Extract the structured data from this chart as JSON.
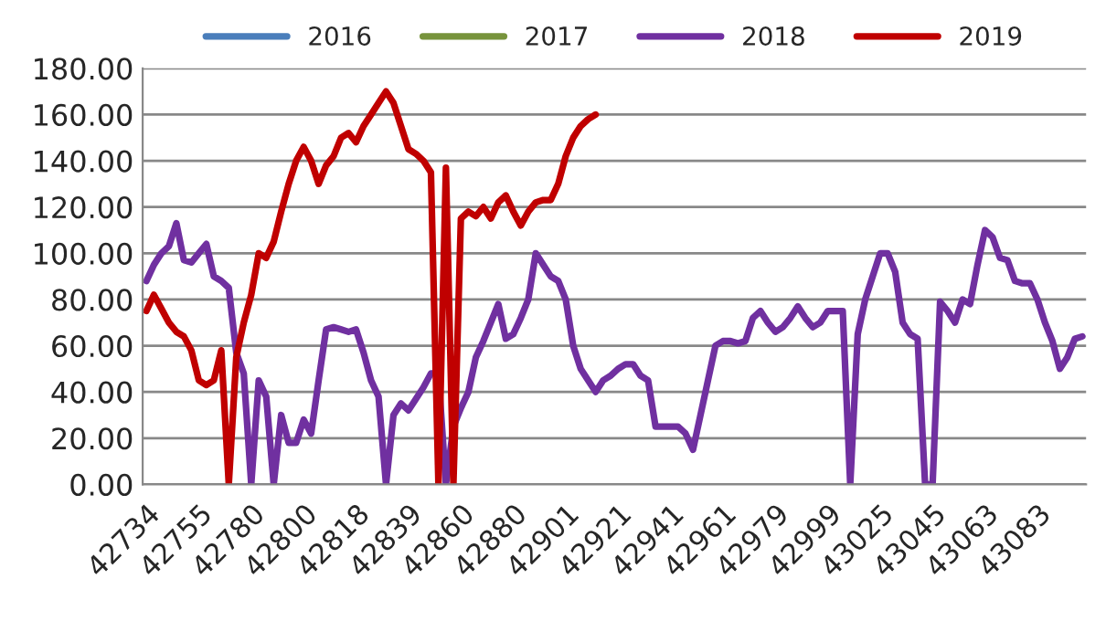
{
  "chart_data": {
    "type": "line",
    "categories": [
      "42734",
      null,
      null,
      null,
      null,
      null,
      null,
      "42755",
      null,
      null,
      null,
      null,
      null,
      null,
      "42780",
      null,
      null,
      null,
      null,
      null,
      null,
      "42800",
      null,
      null,
      null,
      null,
      null,
      null,
      "42818",
      null,
      null,
      null,
      null,
      null,
      null,
      "42839",
      null,
      null,
      null,
      null,
      null,
      null,
      "42860",
      null,
      null,
      null,
      null,
      null,
      null,
      "42880",
      null,
      null,
      null,
      null,
      null,
      null,
      "42901",
      null,
      null,
      null,
      null,
      null,
      null,
      "42921",
      null,
      null,
      null,
      null,
      null,
      null,
      "42941",
      null,
      null,
      null,
      null,
      null,
      null,
      "42961",
      null,
      null,
      null,
      null,
      null,
      null,
      "42979",
      null,
      null,
      null,
      null,
      null,
      null,
      "42999",
      null,
      null,
      null,
      null,
      null,
      null,
      "43025",
      null,
      null,
      null,
      null,
      null,
      null,
      "43045",
      null,
      null,
      null,
      null,
      null,
      null,
      "43063",
      null,
      null,
      null,
      null,
      null,
      null,
      "43083",
      null,
      null,
      null,
      null,
      null,
      null
    ],
    "series": [
      {
        "name": "2016",
        "color": "#4a7ebb",
        "values": [
          null,
          null,
          null,
          null,
          null,
          null,
          null,
          null,
          null,
          null,
          null,
          null,
          null,
          null,
          null,
          null,
          null,
          null,
          null,
          null,
          null,
          null,
          null,
          null,
          null,
          null,
          null,
          null,
          null,
          null,
          null,
          null,
          null,
          null,
          null,
          null,
          null,
          null,
          null,
          null,
          null,
          null,
          null,
          null,
          null,
          null,
          null,
          null,
          null,
          null,
          null,
          null,
          null,
          null,
          null,
          null,
          null,
          null,
          null,
          null,
          null,
          null,
          null,
          null,
          null,
          null,
          null,
          null,
          null,
          null,
          null,
          null,
          null,
          null,
          null,
          null,
          null,
          null,
          null,
          null,
          null,
          null,
          null,
          null,
          null,
          null,
          null,
          null,
          null,
          null,
          null,
          null,
          null,
          null,
          null,
          null,
          null,
          null,
          null,
          null,
          null,
          null,
          null,
          null,
          null,
          null,
          null,
          null,
          null,
          null,
          null,
          null,
          null,
          null,
          null,
          null,
          null,
          null,
          null,
          null,
          null,
          null,
          null,
          null,
          null,
          null
        ]
      },
      {
        "name": "2017",
        "color": "#77933c",
        "values": [
          null,
          null,
          null,
          null,
          null,
          null,
          null,
          null,
          null,
          null,
          null,
          null,
          null,
          null,
          null,
          null,
          null,
          null,
          null,
          null,
          null,
          null,
          null,
          null,
          null,
          null,
          null,
          null,
          null,
          null,
          null,
          null,
          null,
          null,
          null,
          null,
          null,
          null,
          null,
          null,
          null,
          null,
          null,
          null,
          null,
          null,
          null,
          null,
          null,
          null,
          null,
          null,
          null,
          null,
          null,
          null,
          null,
          null,
          null,
          null,
          null,
          null,
          null,
          null,
          null,
          null,
          null,
          null,
          null,
          null,
          null,
          null,
          null,
          null,
          null,
          null,
          null,
          null,
          null,
          null,
          null,
          null,
          null,
          null,
          null,
          null,
          null,
          null,
          null,
          null,
          null,
          null,
          null,
          null,
          null,
          null,
          null,
          null,
          null,
          null,
          null,
          null,
          null,
          null,
          null,
          null,
          null,
          null,
          null,
          null,
          null,
          null,
          null,
          null,
          null,
          null,
          null,
          null,
          null,
          null,
          null,
          null,
          null,
          null,
          null,
          null
        ]
      },
      {
        "name": "2018",
        "color": "#7030a0",
        "values": [
          88,
          95,
          100,
          103,
          113,
          97,
          96,
          100,
          104,
          90,
          88,
          85,
          57,
          48,
          0,
          45,
          38,
          0,
          30,
          18,
          18,
          28,
          22,
          45,
          67,
          68,
          67,
          66,
          67,
          57,
          45,
          38,
          0,
          30,
          35,
          32,
          37,
          42,
          48,
          48,
          0,
          25,
          33,
          40,
          55,
          62,
          70,
          78,
          63,
          65,
          72,
          80,
          100,
          95,
          90,
          88,
          80,
          60,
          50,
          45,
          40,
          45,
          47,
          50,
          52,
          52,
          47,
          45,
          25,
          25,
          25,
          25,
          22,
          15,
          30,
          45,
          60,
          62,
          62,
          61,
          62,
          72,
          75,
          70,
          66,
          68,
          72,
          77,
          72,
          68,
          70,
          75,
          75,
          75,
          0,
          65,
          80,
          90,
          100,
          100,
          92,
          70,
          65,
          63,
          0,
          0,
          79,
          75,
          70,
          80,
          78,
          95,
          110,
          107,
          98,
          97,
          88,
          87,
          87,
          80,
          70,
          62,
          50,
          55,
          63,
          64
        ]
      },
      {
        "name": "2019",
        "color": "#c00000",
        "values": [
          75,
          82,
          76,
          70,
          66,
          64,
          58,
          45,
          43,
          45,
          58,
          0,
          55,
          70,
          82,
          100,
          98,
          105,
          118,
          130,
          140,
          146,
          140,
          130,
          138,
          142,
          150,
          152,
          148,
          155,
          160,
          165,
          170,
          165,
          155,
          145,
          143,
          140,
          135,
          0,
          137,
          0,
          115,
          118,
          116,
          120,
          115,
          122,
          125,
          118,
          112,
          118,
          122,
          123,
          123,
          130,
          142,
          150,
          155,
          158,
          160,
          null,
          null,
          null,
          null,
          null,
          null,
          null,
          null,
          null,
          null,
          null,
          null,
          null,
          null,
          null,
          null,
          null,
          null,
          null,
          null,
          null,
          null,
          null,
          null,
          null,
          null,
          null,
          null,
          null,
          null,
          null,
          null,
          null,
          null,
          null,
          null,
          null,
          null,
          null,
          null,
          null,
          null,
          null,
          null,
          null,
          null,
          null,
          null,
          null,
          null,
          null,
          null,
          null,
          null,
          null,
          null,
          null,
          null,
          null,
          null,
          null,
          null,
          null,
          null,
          null
        ]
      }
    ],
    "ylim": [
      0,
      180
    ],
    "yticks": [
      {
        "value": 0,
        "label": "0.00"
      },
      {
        "value": 20,
        "label": "20.00"
      },
      {
        "value": 40,
        "label": "40.00"
      },
      {
        "value": 60,
        "label": "60.00"
      },
      {
        "value": 80,
        "label": "80.00"
      },
      {
        "value": 100,
        "label": "100.00"
      },
      {
        "value": 120,
        "label": "120.00"
      },
      {
        "value": 140,
        "label": "140.00"
      },
      {
        "value": 160,
        "label": "160.00"
      },
      {
        "value": 180,
        "label": "180.00"
      }
    ],
    "grid": "y",
    "legend": "top",
    "line_style": "solid",
    "marker": "none"
  }
}
